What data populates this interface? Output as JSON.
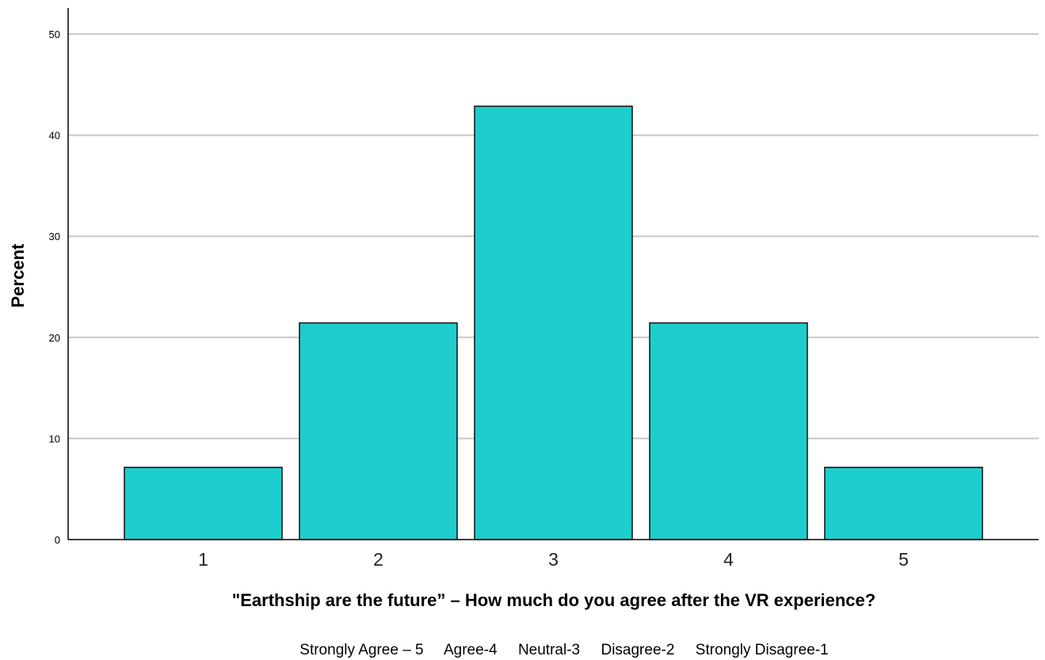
{
  "chart_data": {
    "type": "bar",
    "categories": [
      "1",
      "2",
      "3",
      "4",
      "5"
    ],
    "values": [
      7.14,
      21.43,
      42.86,
      21.43,
      7.14
    ],
    "xlabel": "\"Earthship are the future” – How much do you agree after the VR experience?",
    "ylabel": "Percent",
    "ylim": [
      0,
      52
    ],
    "yticks": [
      0,
      10,
      20,
      30,
      40,
      50
    ],
    "grid": true,
    "note": "Strongly Agree – 5     Agree-4     Neutral-3     Disagree-2     Strongly Disagree-1",
    "colors": {
      "bar_fill": "#1dcdcd",
      "bar_stroke": "#1a1a1a",
      "grid": "#c8c8c8",
      "axis": "#000000"
    }
  }
}
